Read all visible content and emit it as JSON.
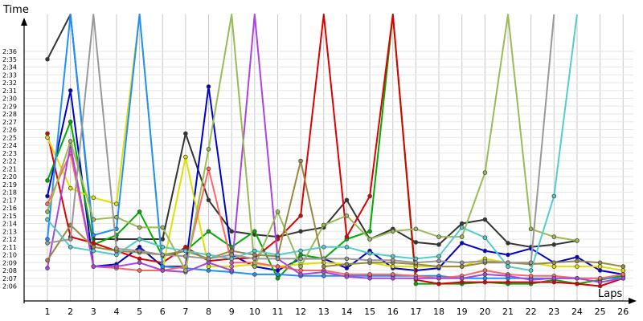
{
  "chart_data": {
    "type": "line",
    "xlabel": "Laps",
    "ylabel": "Time",
    "x": [
      1,
      2,
      3,
      4,
      5,
      6,
      7,
      8,
      9,
      10,
      11,
      12,
      13,
      14,
      15,
      16,
      17,
      18,
      19,
      20,
      21,
      22,
      23,
      24,
      25,
      26
    ],
    "x_tick_labels": [
      "1",
      "2",
      "3",
      "4",
      "5",
      "6",
      "7",
      "8",
      "9",
      "10",
      "11",
      "12",
      "13",
      "14",
      "15",
      "16",
      "17",
      "18",
      "19",
      "20",
      "21",
      "22",
      "23",
      "24",
      "25",
      "26"
    ],
    "y_tick_labels": [
      "2:06",
      "2:07",
      "2:08",
      "2:09",
      "2:10",
      "2:11",
      "2:12",
      "2:13",
      "2:14",
      "2:15",
      "2:16",
      "2:17",
      "2:18",
      "2:19",
      "2:20",
      "2:21",
      "2:22",
      "2:23",
      "2:24",
      "2:25",
      "2:26",
      "2:27",
      "2:28",
      "2:29",
      "2:30",
      "2:31",
      "2:32",
      "2:33",
      "2:34",
      "2:35",
      "2:36"
    ],
    "ylim_seconds": [
      125,
      158
    ],
    "grid": true,
    "legend": "none",
    "series": [
      {
        "color": "#333333",
        "values": [
          155,
          200,
          132,
          132,
          132,
          132,
          145.5,
          137,
          133,
          132.6,
          132.3,
          133,
          133.5,
          137,
          132,
          133.3,
          131.6,
          131.3,
          134,
          134.5,
          131.5,
          131,
          131.3,
          131.8,
          null,
          null
        ]
      },
      {
        "color": "#0000cc",
        "values": [
          137.5,
          151,
          128.5,
          128.8,
          131,
          128.5,
          128.5,
          151.5,
          130,
          128.5,
          128,
          129.5,
          129.5,
          128.3,
          130.5,
          128.3,
          128,
          128.3,
          131.5,
          130.5,
          130,
          130.8,
          129,
          129.7,
          128,
          127.5
        ]
      },
      {
        "color": "#00aa00",
        "values": [
          139.5,
          147,
          131.3,
          132.5,
          135.5,
          129.8,
          130.5,
          133,
          131,
          133,
          127,
          130,
          129.5,
          132,
          133,
          200,
          126.3,
          126.3,
          126.3,
          126.5,
          126.3,
          126.3,
          126.8,
          126.3,
          126.8,
          127.3
        ]
      },
      {
        "color": "#dd0000",
        "values": [
          145.5,
          132.3,
          131.5,
          130.5,
          129.5,
          129,
          131,
          129.2,
          129.5,
          129.6,
          132,
          135,
          200,
          132.3,
          137.5,
          200,
          126.8,
          126.3,
          126.5,
          126.5,
          126.5,
          126.5,
          126.5,
          126.3,
          126,
          127
        ]
      },
      {
        "color": "#e0e000",
        "values": [
          145,
          138.5,
          137.3,
          136.5,
          200,
          128.2,
          142.5,
          128.5,
          128.5,
          128.8,
          128.5,
          128.8,
          129,
          128.8,
          129,
          128.5,
          128.5,
          128.5,
          128.5,
          129.5,
          129,
          129,
          128.5,
          128.5,
          128.5,
          128
        ]
      },
      {
        "color": "#1e90ff",
        "values": [
          132,
          200,
          132.5,
          133.3,
          200,
          128.5,
          128.3,
          128,
          127.8,
          127.5,
          127.5,
          127.3,
          127.3,
          127.3,
          127.3,
          127.3,
          127.3,
          127.3,
          127,
          127,
          127,
          127,
          127,
          127,
          127,
          127
        ]
      },
      {
        "color": "#ff6666",
        "values": [
          136.5,
          143,
          128.5,
          128.3,
          128,
          128,
          128.5,
          141,
          129,
          129,
          128.5,
          128,
          128,
          127.5,
          127.5,
          127.5,
          127.3,
          127,
          127.3,
          128,
          127.5,
          127.3,
          127.3,
          127,
          127,
          127.5
        ]
      },
      {
        "color": "#aa44dd",
        "values": [
          128.3,
          144,
          128.5,
          128.5,
          129,
          128,
          127.8,
          129,
          128,
          200,
          129.5,
          127.5,
          127.8,
          127.2,
          127,
          127,
          127,
          127,
          127,
          127.5,
          127.3,
          126.8,
          127,
          127,
          126.5,
          127
        ]
      },
      {
        "color": "#99bb55",
        "values": [
          135.5,
          144.5,
          134.5,
          134.8,
          133.5,
          133.5,
          128,
          143.5,
          200,
          128.5,
          135.5,
          128.5,
          133.8,
          135,
          132,
          133,
          133.3,
          132.3,
          132.3,
          140.5,
          200,
          133.3,
          132.3,
          131.8,
          null,
          null
        ]
      },
      {
        "color": "#998844",
        "values": [
          129.3,
          133.8,
          131,
          130.5,
          130.3,
          130,
          130.5,
          129.5,
          130.5,
          130,
          129.8,
          142,
          128.5,
          128.8,
          129,
          129,
          128.8,
          128.5,
          128.5,
          129,
          129,
          128.8,
          129,
          129.2,
          129,
          128.5
        ]
      },
      {
        "color": "#55cccc",
        "values": [
          134.5,
          131,
          130.5,
          130,
          132,
          131,
          130.5,
          130,
          129.5,
          130.5,
          130,
          130.5,
          131,
          131,
          130.2,
          129.8,
          129.5,
          129.8,
          133.5,
          132.2,
          128.5,
          128,
          137.5,
          200,
          null,
          null
        ]
      },
      {
        "color": "#999999",
        "values": [
          131.5,
          132,
          200,
          130.8,
          130.5,
          130,
          129.8,
          129.5,
          130,
          129.5,
          129.5,
          129.5,
          129.5,
          129.5,
          129.3,
          129.3,
          129,
          129.2,
          129,
          129.2,
          129,
          129,
          200,
          null,
          null,
          null
        ]
      }
    ]
  }
}
